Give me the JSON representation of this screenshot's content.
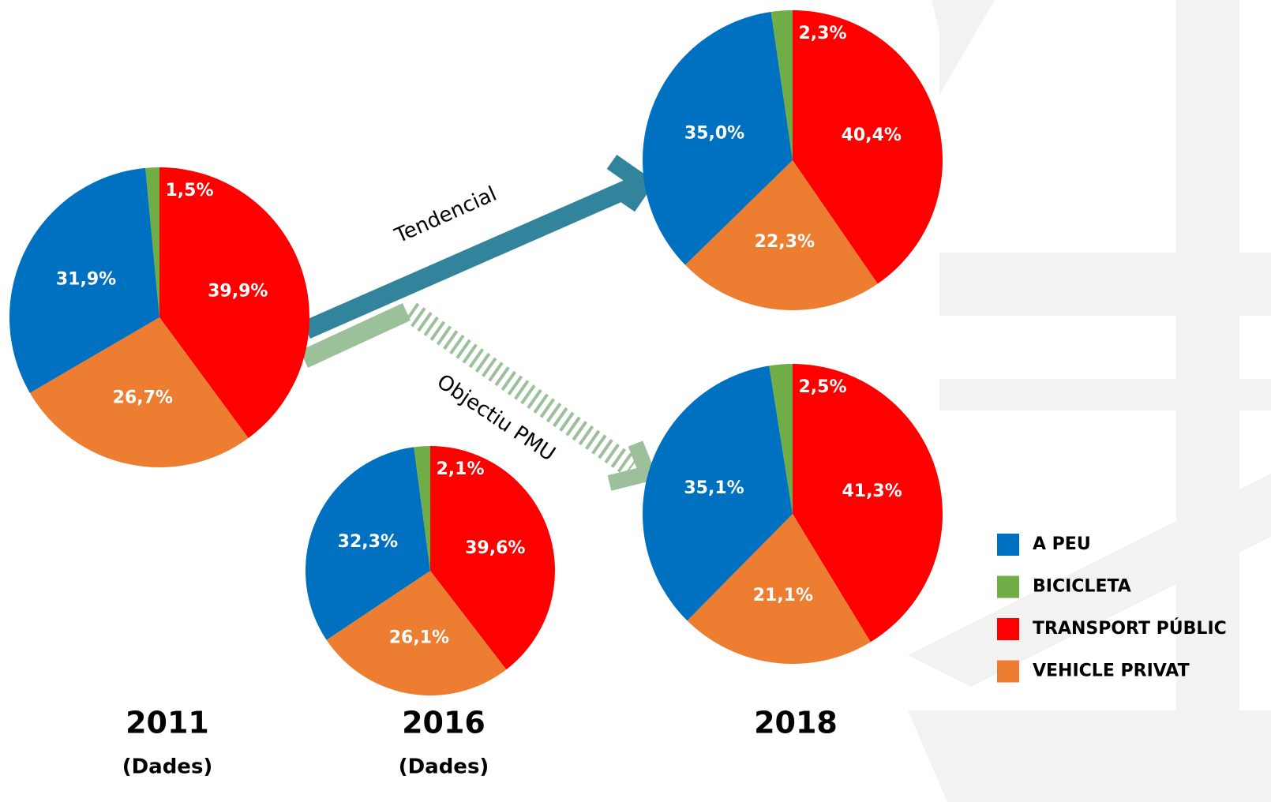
{
  "chart_data": [
    {
      "type": "pie",
      "title": "2011",
      "subtitle": "(Dades)",
      "categories": [
        "A PEU",
        "BICICLETA",
        "TRANSPORT PÚBLIC",
        "VEHICLE PRIVAT"
      ],
      "colors": [
        "#0070c0",
        "#70ad47",
        "#ff0000",
        "#ed7d31"
      ],
      "values": [
        31.9,
        1.5,
        39.9,
        26.7
      ],
      "value_labels": [
        "31,9%",
        "1,5%",
        "39,9%",
        "26,7%"
      ]
    },
    {
      "type": "pie",
      "title": "2016",
      "subtitle": "(Dades)",
      "values": [
        32.3,
        2.1,
        39.6,
        26.1
      ],
      "value_labels": [
        "32,3%",
        "2,1%",
        "39,6%",
        "26,1%"
      ]
    },
    {
      "type": "pie",
      "title": "2018",
      "annotation": "Tendencial",
      "values": [
        35.0,
        2.3,
        40.4,
        22.3
      ],
      "value_labels": [
        "35,0%",
        "2,3%",
        "40,4%",
        "22,3%"
      ]
    },
    {
      "type": "pie",
      "annotation": "Objectiu PMU",
      "values": [
        35.1,
        2.5,
        41.3,
        21.1
      ],
      "value_labels": [
        "35,1%",
        "2,5%",
        "41,3%",
        "21,1%"
      ]
    }
  ]
}
